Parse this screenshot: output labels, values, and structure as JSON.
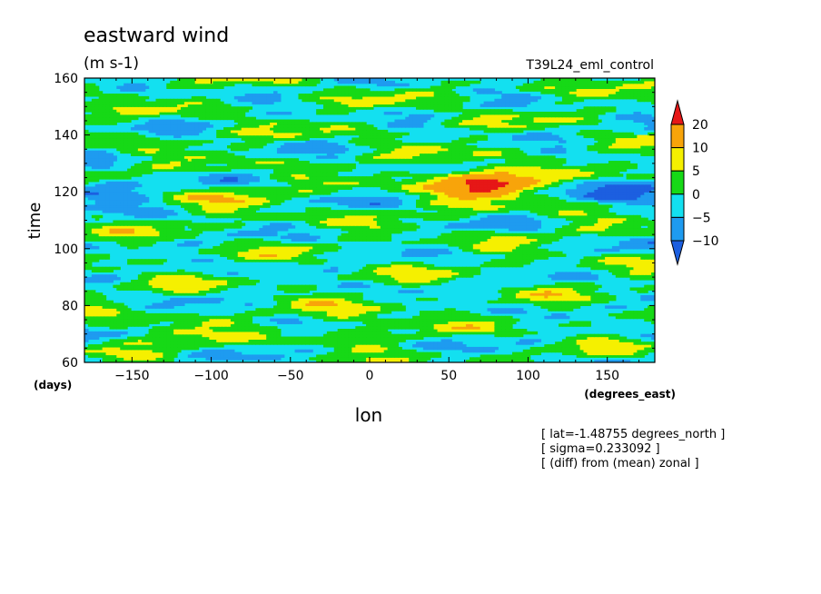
{
  "chart_data": {
    "type": "heatmap",
    "title": "eastward wind",
    "units": "(m s-1)",
    "run_name": "T39L24_eml_control",
    "xlabel": "lon",
    "x_units": "(degrees_east)",
    "ylabel": "time",
    "y_units": "(days)",
    "xlim": [
      -180,
      180
    ],
    "ylim": [
      60,
      160
    ],
    "x_ticks": [
      -150,
      -100,
      -50,
      0,
      50,
      100,
      150
    ],
    "y_ticks": [
      60,
      80,
      100,
      120,
      140,
      160
    ],
    "colorbar": {
      "levels": [
        -10,
        -5,
        0,
        5,
        10,
        20
      ],
      "colors": [
        "#1c5fe0",
        "#1e9bf0",
        "#13e0f0",
        "#16d916",
        "#f5f000",
        "#f8a40a",
        "#e61717"
      ],
      "extend": "both"
    },
    "notes": [
      "[ lat=-1.48755 degrees_north ]",
      "[ sigma=0.233092 ]",
      "[ (diff) from (mean) zonal ]"
    ],
    "features": [
      {
        "lon": 75,
        "time": 122,
        "value": 20
      },
      {
        "lon": 65,
        "time": 125,
        "value": 12
      },
      {
        "lon": -90,
        "time": 118,
        "value": 7
      },
      {
        "lon": -130,
        "time": 70,
        "value": 8
      },
      {
        "lon": -5,
        "time": 75,
        "value": 8
      },
      {
        "lon": 170,
        "time": 120,
        "value": -10
      },
      {
        "lon": -170,
        "time": 120,
        "value": -9
      }
    ]
  }
}
